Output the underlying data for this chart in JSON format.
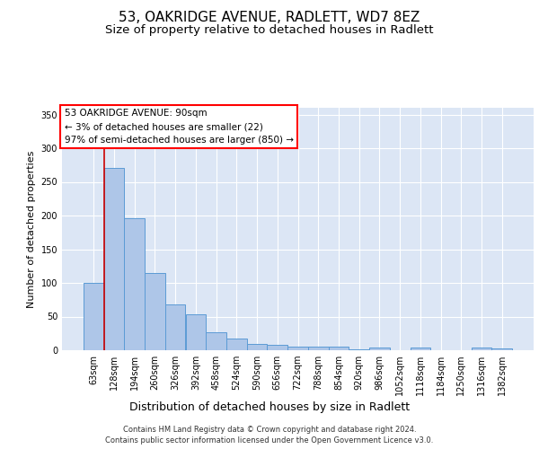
{
  "title": "53, OAKRIDGE AVENUE, RADLETT, WD7 8EZ",
  "subtitle": "Size of property relative to detached houses in Radlett",
  "xlabel": "Distribution of detached houses by size in Radlett",
  "ylabel": "Number of detached properties",
  "categories": [
    "63sqm",
    "128sqm",
    "194sqm",
    "260sqm",
    "326sqm",
    "392sqm",
    "458sqm",
    "524sqm",
    "590sqm",
    "656sqm",
    "722sqm",
    "788sqm",
    "854sqm",
    "920sqm",
    "986sqm",
    "1052sqm",
    "1118sqm",
    "1184sqm",
    "1250sqm",
    "1316sqm",
    "1382sqm"
  ],
  "values": [
    100,
    271,
    196,
    115,
    68,
    54,
    27,
    17,
    9,
    8,
    5,
    5,
    6,
    2,
    4,
    0,
    4,
    0,
    0,
    4,
    3
  ],
  "bar_color": "#aec6e8",
  "bar_edge_color": "#5b9bd5",
  "background_color": "#dce6f5",
  "annotation_box_text": "53 OAKRIDGE AVENUE: 90sqm\n← 3% of detached houses are smaller (22)\n97% of semi-detached houses are larger (850) →",
  "marker_line_color": "#cc0000",
  "ylim": [
    0,
    360
  ],
  "yticks": [
    0,
    50,
    100,
    150,
    200,
    250,
    300,
    350
  ],
  "footer_text": "Contains HM Land Registry data © Crown copyright and database right 2024.\nContains public sector information licensed under the Open Government Licence v3.0.",
  "title_fontsize": 11,
  "subtitle_fontsize": 9.5,
  "xlabel_fontsize": 9,
  "ylabel_fontsize": 8,
  "tick_fontsize": 7,
  "annotation_fontsize": 7.5,
  "footer_fontsize": 6
}
